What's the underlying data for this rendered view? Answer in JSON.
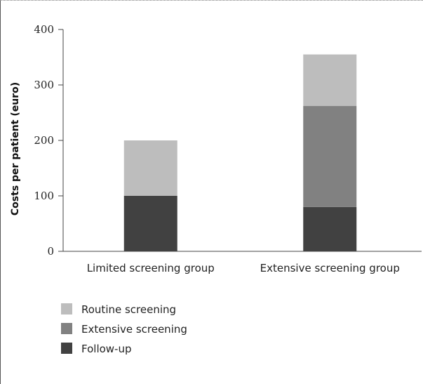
{
  "chart_data": {
    "type": "bar",
    "stacked": true,
    "categories": [
      "Limited screening group",
      "Extensive screening group"
    ],
    "series": [
      {
        "name": "Follow-up",
        "values": [
          100,
          80
        ],
        "color": "#414141"
      },
      {
        "name": "Extensive screening",
        "values": [
          0,
          182
        ],
        "color": "#818181"
      },
      {
        "name": "Routine screening",
        "values": [
          100,
          93
        ],
        "color": "#bdbdbd"
      }
    ],
    "legend_order": [
      "Routine screening",
      "Extensive screening",
      "Follow-up"
    ],
    "title": "",
    "xlabel": "",
    "ylabel": "Costs per patient (euro)",
    "ylim": [
      0,
      400
    ],
    "yticks": [
      0,
      100,
      200,
      300,
      400
    ],
    "grid": false,
    "legend_position": "bottom-left"
  }
}
